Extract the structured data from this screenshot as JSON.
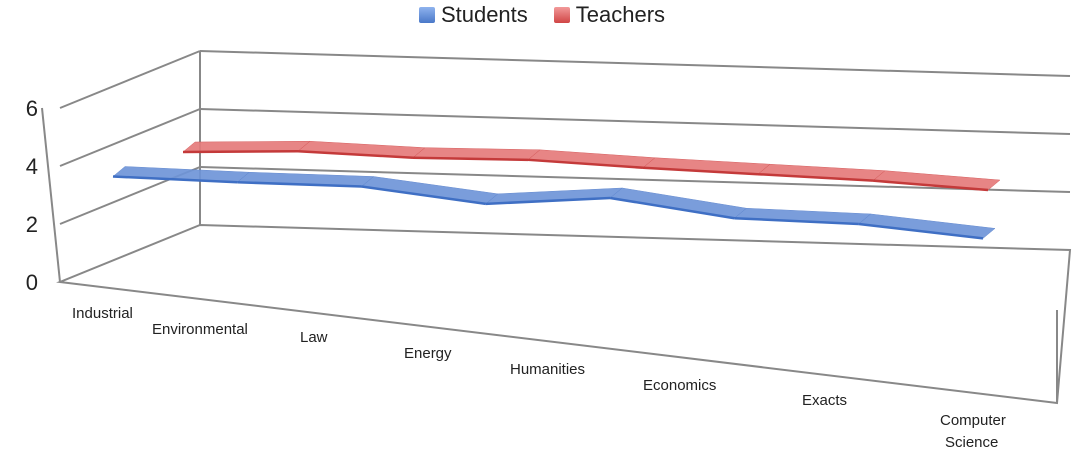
{
  "chart_data": {
    "type": "line",
    "style": "3d-ribbon",
    "categories": [
      "Industrial",
      "Environmental",
      "Law",
      "Energy",
      "Humanities",
      "Economics",
      "Exacts",
      "Computer Science"
    ],
    "series": [
      {
        "name": "Students",
        "color": "#5b8ad6",
        "values": [
          3.5,
          3.45,
          3.45,
          3.0,
          3.35,
          2.8,
          2.75,
          2.4
        ]
      },
      {
        "name": "Teachers",
        "color": "#e06666",
        "values": [
          4.0,
          4.15,
          4.05,
          4.1,
          3.95,
          3.85,
          3.75,
          3.55
        ]
      }
    ],
    "ylim": [
      0,
      6
    ],
    "yticks": [
      "0",
      "2",
      "4",
      "6"
    ],
    "grid": true,
    "legend": "top-center"
  }
}
